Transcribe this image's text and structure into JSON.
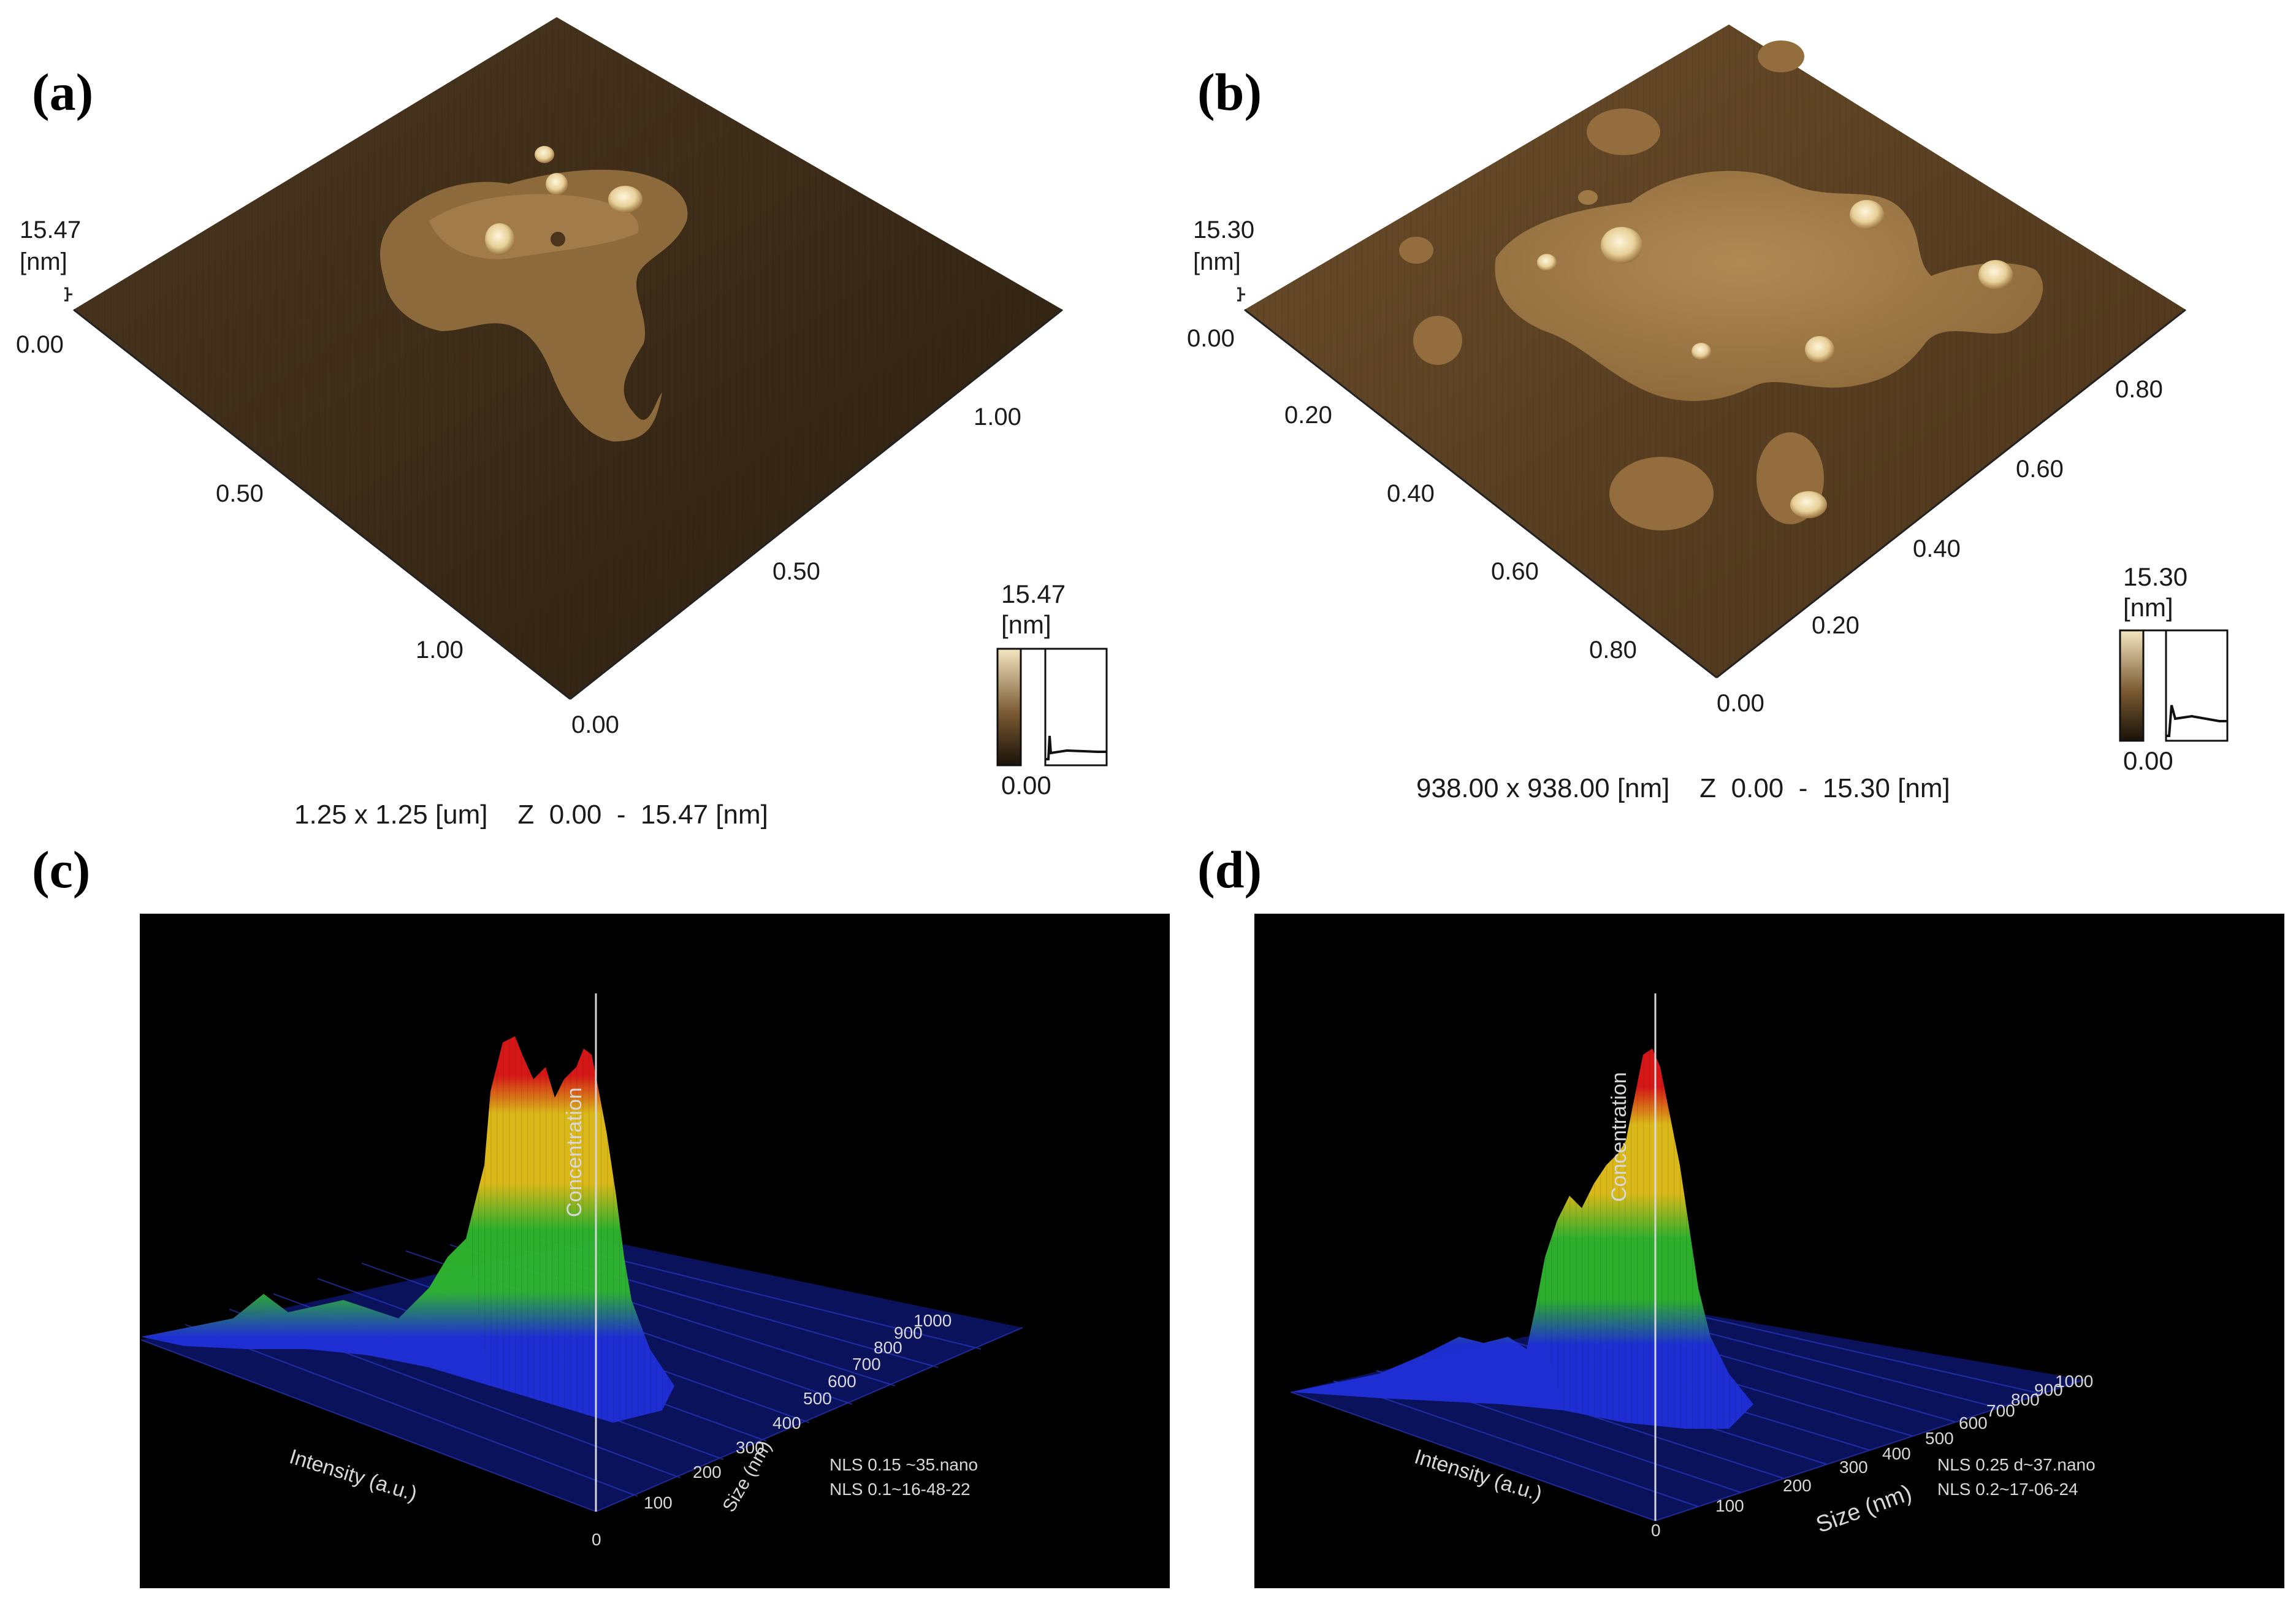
{
  "panels": [
    {
      "letter": "(a)"
    },
    {
      "letter": "(b)"
    },
    {
      "letter": "(c)"
    },
    {
      "letter": "(d)"
    }
  ],
  "afm_a": {
    "z_max": "15.47",
    "unit": "[nm]",
    "z_min": "0.00",
    "axis_left_ticks": [
      "0.50",
      "1.00"
    ],
    "axis_right_ticks": [
      "0.00",
      "0.50",
      "1.00"
    ],
    "scale_max": "15.47",
    "scale_unit": "[nm]",
    "scale_min": "0.00",
    "caption": "1.25 x 1.25 [um]    Z  0.00  -  15.47 [nm]"
  },
  "afm_b": {
    "z_max": "15.30",
    "unit": "[nm]",
    "z_min": "0.00",
    "axis_left_ticks": [
      "0.20",
      "0.40",
      "0.60",
      "0.80"
    ],
    "axis_right_ticks": [
      "0.00",
      "0.20",
      "0.40",
      "0.60",
      "0.80"
    ],
    "scale_max": "15.30",
    "scale_unit": "[nm]",
    "scale_min": "0.00",
    "caption": "938.00 x 938.00 [nm]    Z  0.00  -  15.30 [nm]"
  },
  "nls_c": {
    "vertical_label": "Concentration",
    "left_axis_label": "Intensity (a.u.)",
    "size_axis_label": "Size (nm)",
    "size_ticks": [
      "0",
      "100",
      "200",
      "300",
      "400",
      "500",
      "600",
      "700",
      "800",
      "900",
      "1000"
    ],
    "legend_line1": "NLS 0.15 ~35.nano",
    "legend_line2": "NLS 0.1~16-48-22"
  },
  "nls_d": {
    "vertical_label": "Concentration",
    "left_axis_label": "Intensity (a.u.)",
    "size_axis_label": "Size (nm)",
    "size_ticks": [
      "0",
      "100",
      "200",
      "300",
      "400",
      "500",
      "600",
      "700",
      "800",
      "900",
      "1000"
    ],
    "legend_line1": "NLS 0.25 d~37.nano",
    "legend_line2": "NLS 0.2~17-06-24"
  },
  "colors": {
    "afm_dark": "#3a2a18",
    "afm_light": "#f2e2b8",
    "nls_background": "#000000",
    "nls_low": "#1f2fd8",
    "nls_mid": "#2fb82f",
    "nls_high_mid": "#e6c21a",
    "nls_peak": "#e01818"
  }
}
